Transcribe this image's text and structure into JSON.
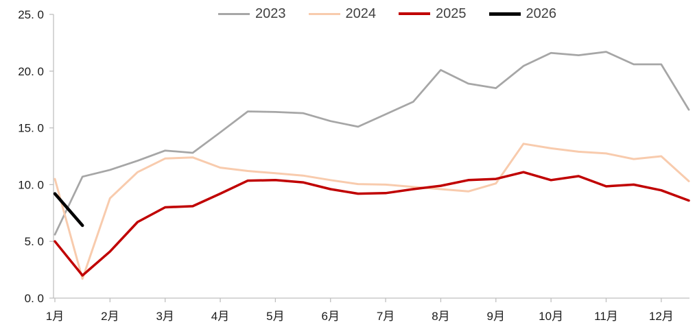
{
  "chart_data": {
    "type": "line",
    "title": "",
    "x_months": [
      1,
      1.5,
      2,
      2.5,
      3,
      3.5,
      4,
      4.5,
      5,
      5.5,
      6,
      6.5,
      7,
      7.5,
      8,
      8.5,
      9,
      9.5,
      10,
      10.5,
      11,
      11.5,
      12,
      12.5
    ],
    "x_axis": {
      "tick_labels": [
        "1月",
        "2月",
        "3月",
        "4月",
        "5月",
        "6月",
        "7月",
        "8月",
        "9月",
        "10月",
        "11月",
        "12月"
      ],
      "range": [
        1,
        12.5
      ]
    },
    "y_axis": {
      "min": 0,
      "max": 25,
      "step": 5,
      "tick_labels": [
        "0. 0",
        "5. 0",
        "10. 0",
        "15. 0",
        "20. 0",
        "25. 0"
      ]
    },
    "grid": false,
    "legend_position": "top",
    "axis_color": "#BFBFBF",
    "text_color": "#1a1a1a",
    "legend_text_color": "#404040",
    "series": [
      {
        "name": "2023",
        "color": "#A6A6A6",
        "stroke_width": 2.75,
        "values": [
          5.6,
          10.7,
          11.3,
          12.1,
          13.0,
          12.8,
          14.6,
          16.45,
          16.4,
          16.3,
          15.6,
          15.1,
          16.2,
          17.3,
          20.1,
          18.9,
          18.5,
          20.45,
          21.6,
          21.4,
          21.7,
          20.6,
          20.6,
          16.6
        ]
      },
      {
        "name": "2024",
        "color": "#F8CBAD",
        "stroke_width": 3,
        "values": [
          10.5,
          1.7,
          8.8,
          11.1,
          12.3,
          12.4,
          11.5,
          11.2,
          11.0,
          10.8,
          10.4,
          10.05,
          10.0,
          9.8,
          9.6,
          9.4,
          10.1,
          13.6,
          13.2,
          12.9,
          12.75,
          12.25,
          12.5,
          10.3
        ]
      },
      {
        "name": "2025",
        "color": "#C00000",
        "stroke_width": 3.5,
        "values": [
          5.0,
          2.0,
          4.1,
          6.7,
          8.0,
          8.1,
          9.2,
          10.35,
          10.4,
          10.2,
          9.6,
          9.2,
          9.25,
          9.6,
          9.9,
          10.4,
          10.5,
          11.1,
          10.4,
          10.75,
          9.85,
          10.0,
          9.5,
          8.6
        ]
      },
      {
        "name": "2026",
        "color": "#000000",
        "stroke_width": 4.5,
        "values": [
          9.2,
          6.4,
          null,
          null,
          null,
          null,
          null,
          null,
          null,
          null,
          null,
          null,
          null,
          null,
          null,
          null,
          null,
          null,
          null,
          null,
          null,
          null,
          null,
          null
        ]
      }
    ]
  }
}
